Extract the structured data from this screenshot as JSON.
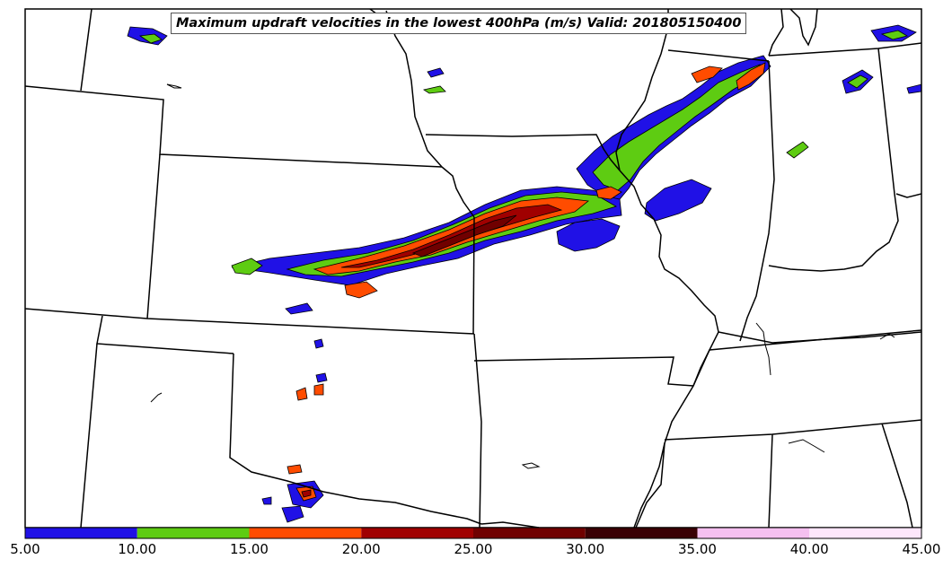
{
  "title": "Maximum updraft velocities in the lowest 400hPa (m/s) Valid: 201805150400",
  "colorbar": {
    "ticks": [
      "5.00",
      "10.00",
      "15.00",
      "20.00",
      "25.00",
      "30.00",
      "35.00",
      "40.00",
      "45.00"
    ],
    "bins": [
      {
        "from": 5,
        "to": 10,
        "color": "#2011e6"
      },
      {
        "from": 10,
        "to": 15,
        "color": "#5ecc12"
      },
      {
        "from": 15,
        "to": 20,
        "color": "#ff4c00"
      },
      {
        "from": 20,
        "to": 25,
        "color": "#a00000"
      },
      {
        "from": 25,
        "to": 30,
        "color": "#700000"
      },
      {
        "from": 30,
        "to": 35,
        "color": "#3a0005"
      },
      {
        "from": 35,
        "to": 40,
        "color": "#f5c0f0"
      },
      {
        "from": 40,
        "to": 45,
        "color": "#fde6fb"
      }
    ]
  },
  "colors": {
    "state_lines": "#000000",
    "background": "#ffffff"
  }
}
